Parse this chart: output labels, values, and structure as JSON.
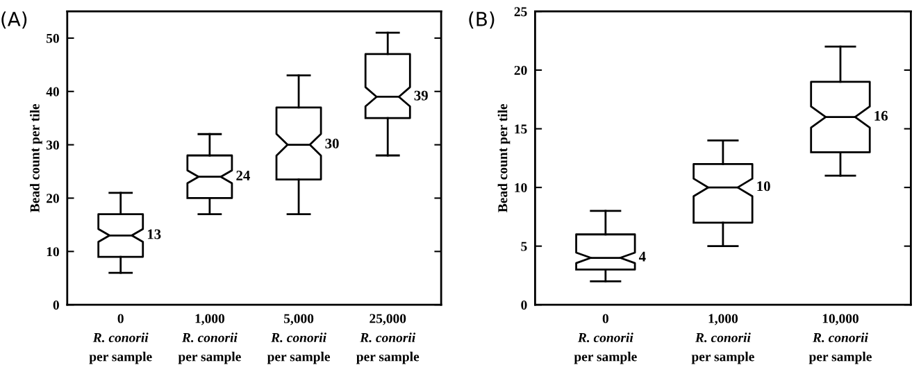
{
  "chart_data": [
    {
      "type": "box",
      "title": "(A)",
      "ylabel": "Bead count per tile",
      "categories": [
        "0\nR. conorii\nper sample",
        "1,000\nR. conorii\nper sample",
        "5,000\nR. conorii\nper sample",
        "25,000\nR. conorii\nper sample"
      ],
      "boxes": [
        {
          "low": 6,
          "q1": 9,
          "median": 13,
          "q3": 17,
          "high": 21
        },
        {
          "low": 17,
          "q1": 20,
          "median": 24,
          "q3": 28,
          "high": 32
        },
        {
          "low": 17,
          "q1": 23.5,
          "median": 30,
          "q3": 37,
          "high": 43
        },
        {
          "low": 28,
          "q1": 35,
          "median": 39,
          "q3": 47,
          "high": 51
        }
      ],
      "ylim": [
        0,
        55
      ],
      "yticks": [
        0,
        10,
        20,
        30,
        40,
        50
      ],
      "grid": false,
      "annotations": [
        {
          "text": "13",
          "x": "0\nR. conorii\nper sample",
          "y": 13
        },
        {
          "text": "24",
          "x": "1,000\nR. conorii\nper sample",
          "y": 24
        },
        {
          "text": "30",
          "x": "5,000\nR. conorii\nper sample",
          "y": 30
        },
        {
          "text": "39",
          "x": "25,000\nR. conorii\nper sample",
          "y": 39
        }
      ]
    },
    {
      "type": "box",
      "title": "(B)",
      "ylabel": "Bead count per tile",
      "categories": [
        "0\nR. conorii\nper sample",
        "1,000\nR. conorii\nper sample",
        "10,000\nR. conorii\nper sample"
      ],
      "boxes": [
        {
          "low": 2,
          "q1": 3,
          "median": 4,
          "q3": 6,
          "high": 8
        },
        {
          "low": 5,
          "q1": 7,
          "median": 10,
          "q3": 12,
          "high": 14
        },
        {
          "low": 11,
          "q1": 13,
          "median": 16,
          "q3": 19,
          "high": 22
        }
      ],
      "ylim": [
        0,
        25
      ],
      "yticks": [
        0,
        5,
        10,
        15,
        20,
        25
      ],
      "grid": false,
      "annotations": [
        {
          "text": "4",
          "x": "0\nR. conorii\nper sample",
          "y": 4
        },
        {
          "text": "10",
          "x": "1,000\nR. conorii\nper sample",
          "y": 10
        },
        {
          "text": "16",
          "x": "10,000\nR. conorii\nper sample",
          "y": 16
        }
      ]
    }
  ]
}
